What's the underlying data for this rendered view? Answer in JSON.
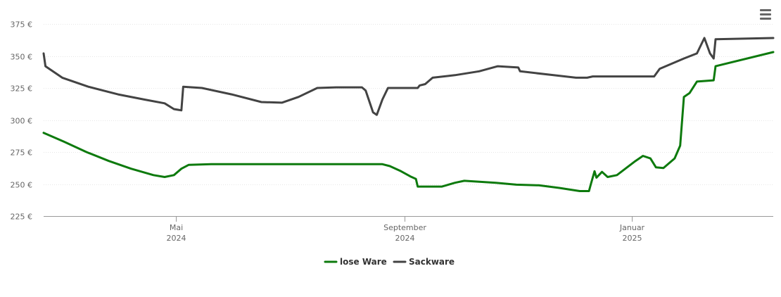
{
  "menu": {
    "icon": "hamburger-menu-icon"
  },
  "chart_data": {
    "type": "line",
    "title": "",
    "xlabel": "",
    "ylabel": "",
    "ylim": [
      225,
      375
    ],
    "y_ticks": [
      {
        "value": 225,
        "label": "225 €"
      },
      {
        "value": 250,
        "label": "250 €"
      },
      {
        "value": 275,
        "label": "275 €"
      },
      {
        "value": 300,
        "label": "300 €"
      },
      {
        "value": 325,
        "label": "325 €"
      },
      {
        "value": 350,
        "label": "350 €"
      },
      {
        "value": 375,
        "label": "375 €"
      }
    ],
    "xlim": [
      "2024-02-20",
      "2025-03-18"
    ],
    "x_ticks": [
      {
        "date": "2024-05-01",
        "month": "Mai",
        "year": "2024"
      },
      {
        "date": "2024-09-01",
        "month": "September",
        "year": "2024"
      },
      {
        "date": "2025-01-01",
        "month": "Januar",
        "year": "2025"
      }
    ],
    "grid": true,
    "legend_position": "bottom-center",
    "series": [
      {
        "name": "lose Ware",
        "color": "#0d7a0d",
        "points": [
          [
            "2024-02-20",
            290
          ],
          [
            "2024-03-02",
            283
          ],
          [
            "2024-03-14",
            275
          ],
          [
            "2024-03-26",
            268
          ],
          [
            "2024-04-07",
            262
          ],
          [
            "2024-04-19",
            257
          ],
          [
            "2024-04-25",
            255.5
          ],
          [
            "2024-04-30",
            257
          ],
          [
            "2024-05-04",
            262
          ],
          [
            "2024-05-08",
            265
          ],
          [
            "2024-05-20",
            265.5
          ],
          [
            "2024-06-20",
            265.5
          ],
          [
            "2024-07-20",
            265.5
          ],
          [
            "2024-08-20",
            265.5
          ],
          [
            "2024-08-24",
            264
          ],
          [
            "2024-08-30",
            260
          ],
          [
            "2024-09-04",
            256
          ],
          [
            "2024-09-07",
            254
          ],
          [
            "2024-09-08",
            248
          ],
          [
            "2024-09-21",
            248
          ],
          [
            "2024-09-28",
            251
          ],
          [
            "2024-10-03",
            252.5
          ],
          [
            "2024-10-20",
            251
          ],
          [
            "2024-10-31",
            249.5
          ],
          [
            "2024-11-12",
            249
          ],
          [
            "2024-11-23",
            247
          ],
          [
            "2024-12-04",
            244.5
          ],
          [
            "2024-12-09",
            244.5
          ],
          [
            "2024-12-10",
            250
          ],
          [
            "2024-12-12",
            260
          ],
          [
            "2024-12-13",
            255
          ],
          [
            "2024-12-16",
            259.5
          ],
          [
            "2024-12-19",
            255.5
          ],
          [
            "2024-12-24",
            257
          ],
          [
            "2025-01-03",
            268
          ],
          [
            "2025-01-07",
            272
          ],
          [
            "2025-01-11",
            270
          ],
          [
            "2025-01-14",
            263
          ],
          [
            "2025-01-18",
            262.5
          ],
          [
            "2025-01-24",
            270
          ],
          [
            "2025-01-27",
            280
          ],
          [
            "2025-01-29",
            318
          ],
          [
            "2025-02-01",
            321
          ],
          [
            "2025-02-05",
            330
          ],
          [
            "2025-02-14",
            331
          ],
          [
            "2025-02-15",
            342
          ],
          [
            "2025-03-18",
            353
          ]
        ]
      },
      {
        "name": "Sackware",
        "color": "#434343",
        "points": [
          [
            "2024-02-20",
            352
          ],
          [
            "2024-02-21",
            342
          ],
          [
            "2024-03-01",
            333
          ],
          [
            "2024-03-15",
            326
          ],
          [
            "2024-03-31",
            320
          ],
          [
            "2024-04-14",
            316
          ],
          [
            "2024-04-25",
            313
          ],
          [
            "2024-04-30",
            308.5
          ],
          [
            "2024-05-04",
            307.5
          ],
          [
            "2024-05-05",
            326
          ],
          [
            "2024-05-15",
            325
          ],
          [
            "2024-05-31",
            320
          ],
          [
            "2024-06-16",
            314
          ],
          [
            "2024-06-27",
            313.5
          ],
          [
            "2024-07-06",
            318
          ],
          [
            "2024-07-16",
            325
          ],
          [
            "2024-07-26",
            325.5
          ],
          [
            "2024-08-09",
            325.5
          ],
          [
            "2024-08-11",
            323
          ],
          [
            "2024-08-15",
            306
          ],
          [
            "2024-08-17",
            304
          ],
          [
            "2024-08-20",
            316
          ],
          [
            "2024-08-23",
            325
          ],
          [
            "2024-09-08",
            325
          ],
          [
            "2024-09-09",
            327
          ],
          [
            "2024-09-12",
            328
          ],
          [
            "2024-09-16",
            333
          ],
          [
            "2024-09-28",
            335
          ],
          [
            "2024-10-11",
            338
          ],
          [
            "2024-10-21",
            342
          ],
          [
            "2024-11-01",
            341
          ],
          [
            "2024-11-02",
            338
          ],
          [
            "2024-11-20",
            335
          ],
          [
            "2024-12-02",
            333
          ],
          [
            "2024-12-08",
            333
          ],
          [
            "2024-12-11",
            334
          ],
          [
            "2024-12-26",
            334
          ],
          [
            "2025-01-13",
            334
          ],
          [
            "2025-01-16",
            340
          ],
          [
            "2025-01-29",
            348
          ],
          [
            "2025-02-05",
            352
          ],
          [
            "2025-02-09",
            364
          ],
          [
            "2025-02-12",
            352
          ],
          [
            "2025-02-14",
            348
          ],
          [
            "2025-02-15",
            363
          ],
          [
            "2025-03-18",
            364
          ]
        ]
      }
    ]
  }
}
